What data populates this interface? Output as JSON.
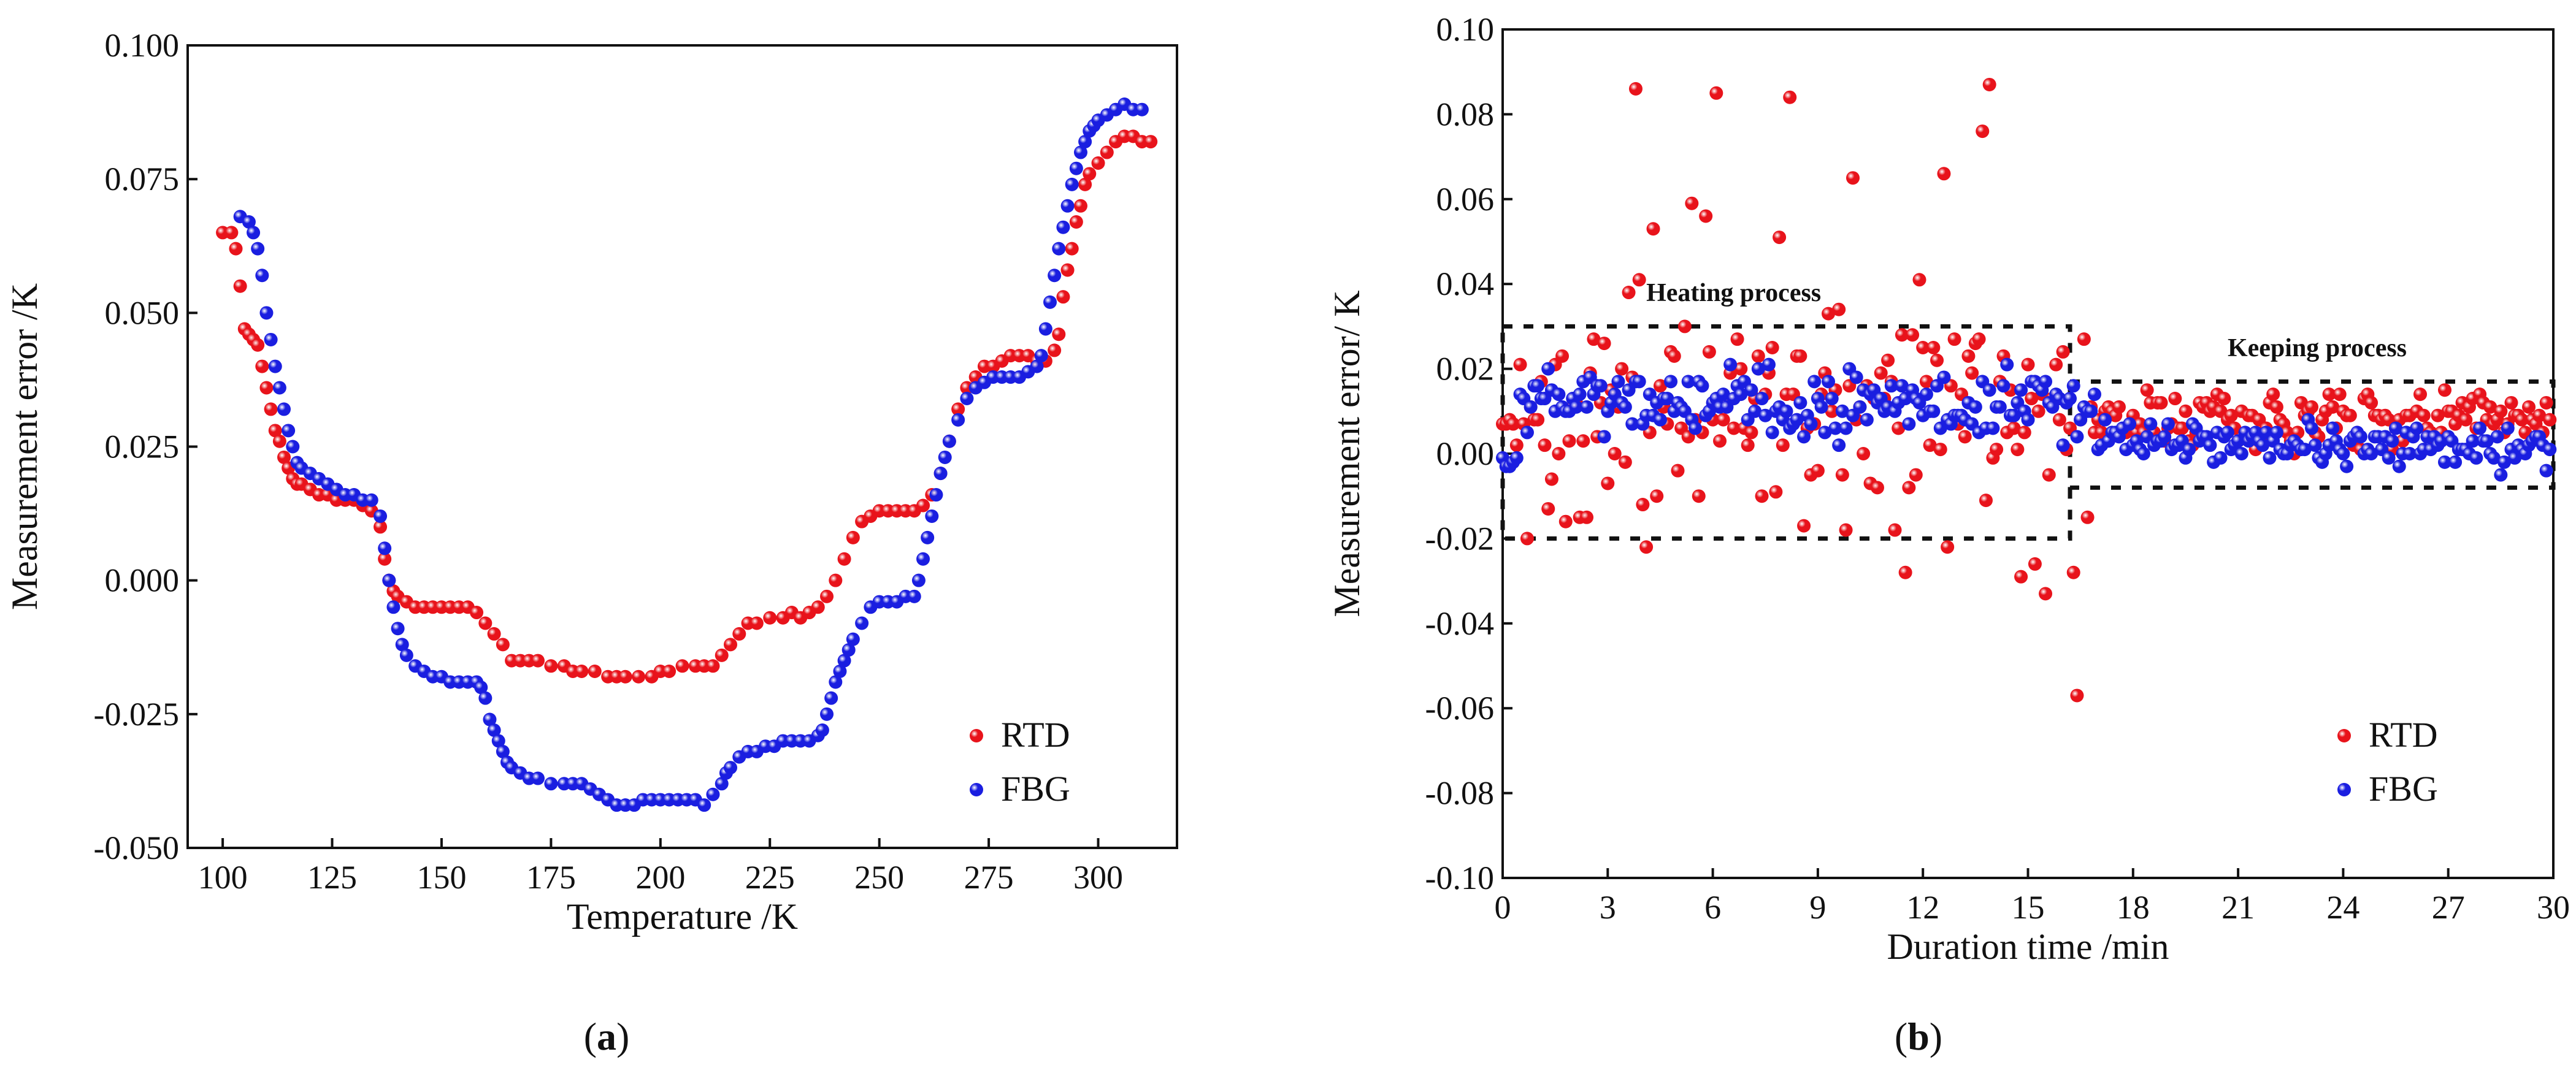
{
  "chart_data": [
    {
      "type": "scatter",
      "panel_label": "a",
      "xlabel": "Temperature /K",
      "ylabel": "Measurement error /K",
      "xlim": [
        92,
        318
      ],
      "ylim": [
        -0.05,
        0.1
      ],
      "xticks": [
        "100",
        "125",
        "150",
        "175",
        "200",
        "225",
        "250",
        "275",
        "300"
      ],
      "yticks": [
        "-0.050",
        "-0.025",
        "0.000",
        "0.025",
        "0.050",
        "0.075",
        "0.100"
      ],
      "legend_position": "bottom-right",
      "legend": [
        "RTD",
        "FBG"
      ],
      "series": [
        {
          "name": "RTD",
          "color": "#e8131b",
          "points": [
            [
              100,
              0.065
            ],
            [
              102,
              0.065
            ],
            [
              103,
              0.062
            ],
            [
              104,
              0.055
            ],
            [
              105,
              0.047
            ],
            [
              106,
              0.046
            ],
            [
              107,
              0.045
            ],
            [
              108,
              0.044
            ],
            [
              109,
              0.04
            ],
            [
              110,
              0.036
            ],
            [
              111,
              0.032
            ],
            [
              112,
              0.028
            ],
            [
              113,
              0.026
            ],
            [
              114,
              0.023
            ],
            [
              115,
              0.021
            ],
            [
              116,
              0.019
            ],
            [
              117,
              0.018
            ],
            [
              118,
              0.018
            ],
            [
              120,
              0.017
            ],
            [
              122,
              0.016
            ],
            [
              124,
              0.016
            ],
            [
              126,
              0.015
            ],
            [
              128,
              0.015
            ],
            [
              130,
              0.015
            ],
            [
              132,
              0.014
            ],
            [
              134,
              0.013
            ],
            [
              136,
              0.01
            ],
            [
              137,
              0.004
            ],
            [
              138,
              0.0
            ],
            [
              139,
              -0.002
            ],
            [
              140,
              -0.003
            ],
            [
              142,
              -0.004
            ],
            [
              144,
              -0.005
            ],
            [
              146,
              -0.005
            ],
            [
              148,
              -0.005
            ],
            [
              150,
              -0.005
            ],
            [
              152,
              -0.005
            ],
            [
              154,
              -0.005
            ],
            [
              156,
              -0.005
            ],
            [
              158,
              -0.006
            ],
            [
              160,
              -0.008
            ],
            [
              162,
              -0.01
            ],
            [
              164,
              -0.012
            ],
            [
              166,
              -0.015
            ],
            [
              168,
              -0.015
            ],
            [
              170,
              -0.015
            ],
            [
              172,
              -0.015
            ],
            [
              175,
              -0.016
            ],
            [
              178,
              -0.016
            ],
            [
              180,
              -0.017
            ],
            [
              182,
              -0.017
            ],
            [
              185,
              -0.017
            ],
            [
              188,
              -0.018
            ],
            [
              190,
              -0.018
            ],
            [
              192,
              -0.018
            ],
            [
              195,
              -0.018
            ],
            [
              198,
              -0.018
            ],
            [
              200,
              -0.017
            ],
            [
              202,
              -0.017
            ],
            [
              205,
              -0.016
            ],
            [
              208,
              -0.016
            ],
            [
              210,
              -0.016
            ],
            [
              212,
              -0.016
            ],
            [
              214,
              -0.014
            ],
            [
              216,
              -0.012
            ],
            [
              218,
              -0.01
            ],
            [
              220,
              -0.008
            ],
            [
              222,
              -0.008
            ],
            [
              225,
              -0.007
            ],
            [
              228,
              -0.007
            ],
            [
              230,
              -0.006
            ],
            [
              232,
              -0.007
            ],
            [
              234,
              -0.006
            ],
            [
              236,
              -0.005
            ],
            [
              238,
              -0.003
            ],
            [
              240,
              0.0
            ],
            [
              242,
              0.004
            ],
            [
              244,
              0.008
            ],
            [
              246,
              0.011
            ],
            [
              248,
              0.012
            ],
            [
              250,
              0.013
            ],
            [
              252,
              0.013
            ],
            [
              254,
              0.013
            ],
            [
              256,
              0.013
            ],
            [
              258,
              0.013
            ],
            [
              260,
              0.014
            ],
            [
              262,
              0.016
            ],
            [
              264,
              0.02
            ],
            [
              266,
              0.026
            ],
            [
              268,
              0.032
            ],
            [
              270,
              0.036
            ],
            [
              272,
              0.038
            ],
            [
              274,
              0.04
            ],
            [
              276,
              0.04
            ],
            [
              278,
              0.041
            ],
            [
              280,
              0.042
            ],
            [
              282,
              0.042
            ],
            [
              284,
              0.042
            ],
            [
              286,
              0.041
            ],
            [
              288,
              0.041
            ],
            [
              290,
              0.043
            ],
            [
              291,
              0.046
            ],
            [
              292,
              0.053
            ],
            [
              293,
              0.058
            ],
            [
              294,
              0.062
            ],
            [
              295,
              0.067
            ],
            [
              296,
              0.07
            ],
            [
              297,
              0.074
            ],
            [
              298,
              0.076
            ],
            [
              300,
              0.078
            ],
            [
              302,
              0.08
            ],
            [
              304,
              0.082
            ],
            [
              306,
              0.083
            ],
            [
              308,
              0.083
            ],
            [
              310,
              0.082
            ],
            [
              312,
              0.082
            ]
          ]
        },
        {
          "name": "FBG",
          "color": "#1a1ee0",
          "points": [
            [
              104,
              0.068
            ],
            [
              106,
              0.067
            ],
            [
              107,
              0.065
            ],
            [
              108,
              0.062
            ],
            [
              109,
              0.057
            ],
            [
              110,
              0.05
            ],
            [
              111,
              0.045
            ],
            [
              112,
              0.04
            ],
            [
              113,
              0.036
            ],
            [
              114,
              0.032
            ],
            [
              115,
              0.028
            ],
            [
              116,
              0.025
            ],
            [
              117,
              0.022
            ],
            [
              118,
              0.021
            ],
            [
              120,
              0.02
            ],
            [
              122,
              0.019
            ],
            [
              124,
              0.018
            ],
            [
              126,
              0.017
            ],
            [
              128,
              0.016
            ],
            [
              130,
              0.016
            ],
            [
              132,
              0.015
            ],
            [
              134,
              0.015
            ],
            [
              136,
              0.012
            ],
            [
              137,
              0.006
            ],
            [
              138,
              0.0
            ],
            [
              139,
              -0.005
            ],
            [
              140,
              -0.009
            ],
            [
              141,
              -0.012
            ],
            [
              142,
              -0.014
            ],
            [
              144,
              -0.016
            ],
            [
              146,
              -0.017
            ],
            [
              148,
              -0.018
            ],
            [
              150,
              -0.018
            ],
            [
              152,
              -0.019
            ],
            [
              154,
              -0.019
            ],
            [
              156,
              -0.019
            ],
            [
              158,
              -0.019
            ],
            [
              159,
              -0.02
            ],
            [
              160,
              -0.022
            ],
            [
              161,
              -0.026
            ],
            [
              162,
              -0.028
            ],
            [
              163,
              -0.03
            ],
            [
              164,
              -0.032
            ],
            [
              165,
              -0.034
            ],
            [
              166,
              -0.035
            ],
            [
              168,
              -0.036
            ],
            [
              170,
              -0.037
            ],
            [
              172,
              -0.037
            ],
            [
              175,
              -0.038
            ],
            [
              178,
              -0.038
            ],
            [
              180,
              -0.038
            ],
            [
              182,
              -0.038
            ],
            [
              184,
              -0.039
            ],
            [
              186,
              -0.04
            ],
            [
              188,
              -0.041
            ],
            [
              190,
              -0.042
            ],
            [
              192,
              -0.042
            ],
            [
              194,
              -0.042
            ],
            [
              196,
              -0.041
            ],
            [
              198,
              -0.041
            ],
            [
              200,
              -0.041
            ],
            [
              202,
              -0.041
            ],
            [
              204,
              -0.041
            ],
            [
              206,
              -0.041
            ],
            [
              208,
              -0.041
            ],
            [
              210,
              -0.042
            ],
            [
              212,
              -0.04
            ],
            [
              214,
              -0.038
            ],
            [
              215,
              -0.036
            ],
            [
              216,
              -0.035
            ],
            [
              218,
              -0.033
            ],
            [
              220,
              -0.032
            ],
            [
              222,
              -0.032
            ],
            [
              224,
              -0.031
            ],
            [
              226,
              -0.031
            ],
            [
              228,
              -0.03
            ],
            [
              230,
              -0.03
            ],
            [
              232,
              -0.03
            ],
            [
              234,
              -0.03
            ],
            [
              236,
              -0.029
            ],
            [
              237,
              -0.028
            ],
            [
              238,
              -0.025
            ],
            [
              239,
              -0.022
            ],
            [
              240,
              -0.019
            ],
            [
              241,
              -0.017
            ],
            [
              242,
              -0.015
            ],
            [
              243,
              -0.013
            ],
            [
              244,
              -0.011
            ],
            [
              246,
              -0.008
            ],
            [
              248,
              -0.005
            ],
            [
              250,
              -0.004
            ],
            [
              252,
              -0.004
            ],
            [
              254,
              -0.004
            ],
            [
              256,
              -0.003
            ],
            [
              258,
              -0.003
            ],
            [
              259,
              0.0
            ],
            [
              260,
              0.004
            ],
            [
              261,
              0.008
            ],
            [
              262,
              0.012
            ],
            [
              263,
              0.016
            ],
            [
              264,
              0.02
            ],
            [
              265,
              0.023
            ],
            [
              266,
              0.026
            ],
            [
              268,
              0.03
            ],
            [
              270,
              0.034
            ],
            [
              272,
              0.036
            ],
            [
              274,
              0.037
            ],
            [
              276,
              0.038
            ],
            [
              278,
              0.038
            ],
            [
              280,
              0.038
            ],
            [
              282,
              0.038
            ],
            [
              284,
              0.039
            ],
            [
              286,
              0.04
            ],
            [
              287,
              0.042
            ],
            [
              288,
              0.047
            ],
            [
              289,
              0.052
            ],
            [
              290,
              0.057
            ],
            [
              291,
              0.062
            ],
            [
              292,
              0.066
            ],
            [
              293,
              0.07
            ],
            [
              294,
              0.074
            ],
            [
              295,
              0.077
            ],
            [
              296,
              0.08
            ],
            [
              297,
              0.082
            ],
            [
              298,
              0.084
            ],
            [
              299,
              0.085
            ],
            [
              300,
              0.086
            ],
            [
              302,
              0.087
            ],
            [
              304,
              0.088
            ],
            [
              306,
              0.089
            ],
            [
              308,
              0.088
            ],
            [
              310,
              0.088
            ]
          ]
        }
      ]
    },
    {
      "type": "scatter",
      "panel_label": "b",
      "xlabel": "Duration  time /min",
      "ylabel": "Measurement error/ K",
      "xlim": [
        0,
        30
      ],
      "ylim": [
        -0.1,
        0.1
      ],
      "xticks": [
        "0",
        "3",
        "6",
        "9",
        "12",
        "15",
        "18",
        "21",
        "24",
        "27",
        "30"
      ],
      "yticks": [
        "-0.10",
        "-0.08",
        "-0.06",
        "-0.04",
        "-0.02",
        "0.00",
        "0.02",
        "0.04",
        "0.06",
        "0.08",
        "0.10"
      ],
      "legend_position": "bottom-right",
      "legend": [
        "RTD",
        "FBG"
      ],
      "annotations": [
        {
          "text": "Heating process",
          "x": 4.1,
          "y": 0.036
        },
        {
          "text": "Keeping process",
          "x": 20.7,
          "y": 0.023
        }
      ],
      "boxes": [
        {
          "x": [
            0,
            16.2
          ],
          "y": [
            -0.02,
            0.03
          ]
        },
        {
          "x": [
            16.2,
            30
          ],
          "y": [
            -0.008,
            0.017
          ]
        }
      ],
      "series": [
        {
          "name": "RTD",
          "color": "#e8131b",
          "points": []
        },
        {
          "name": "FBG",
          "color": "#1a1ee0",
          "points": []
        }
      ]
    }
  ],
  "captions": {
    "a": "(a)",
    "b": "(b)"
  }
}
